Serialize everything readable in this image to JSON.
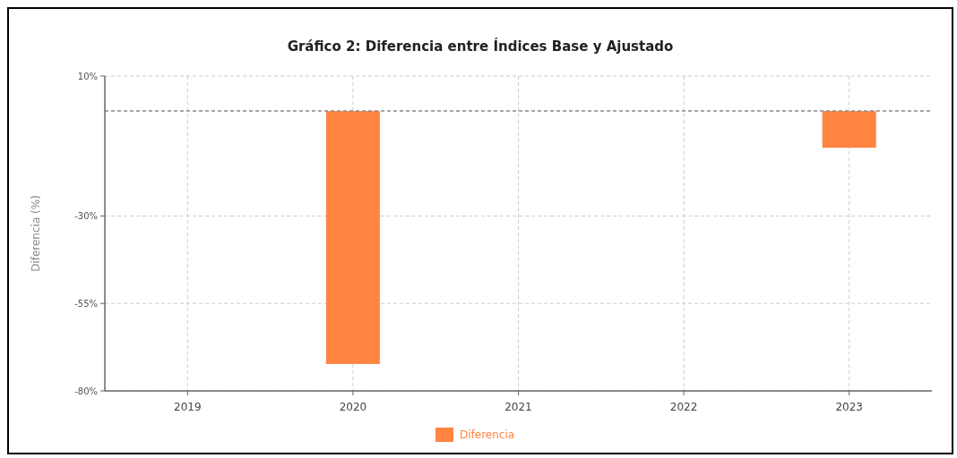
{
  "chart_data": {
    "type": "bar",
    "title": "Gráfico 2: Diferencia entre Índices Base y Ajustado",
    "ylabel": "Diferencia (%)",
    "categories": [
      "2019",
      "2020",
      "2021",
      "2022",
      "2023"
    ],
    "series": [
      {
        "name": "Diferencia",
        "color": "#ff8442",
        "values": [
          0,
          -72.3,
          0,
          0,
          -10.5
        ]
      }
    ],
    "ylim": [
      -80,
      10
    ],
    "yticks": [
      {
        "value": 10,
        "label": "10%"
      },
      {
        "value": -30,
        "label": "-30%"
      },
      {
        "value": -55,
        "label": "-55%"
      },
      {
        "value": -80,
        "label": "-80%"
      }
    ],
    "ref_lines": [
      {
        "axis": "y",
        "value": 0,
        "color": "#888888",
        "line_style": "dashed"
      }
    ],
    "grid": true,
    "legend": "bottom"
  }
}
